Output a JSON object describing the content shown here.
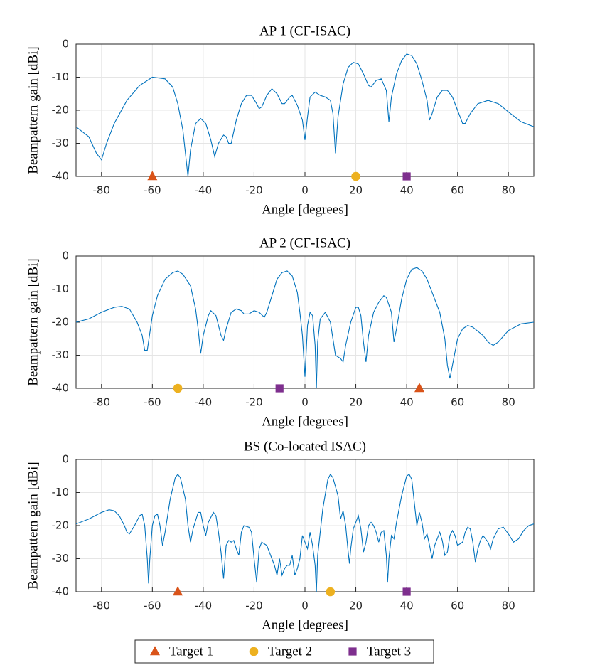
{
  "chart_data": [
    {
      "type": "line",
      "title": "AP 1 (CF-ISAC)",
      "xlabel": "Angle [degrees]",
      "ylabel": "Beampattern gain [dBi]",
      "xlim": [
        -90,
        90
      ],
      "ylim": [
        -40,
        0
      ],
      "xticks": [
        -80,
        -60,
        -40,
        -20,
        0,
        20,
        40,
        60,
        80
      ],
      "yticks": [
        -40,
        -30,
        -20,
        -10,
        0
      ],
      "grid": true,
      "series": [
        {
          "color": "#0072BD",
          "x": [
            -90,
            -85,
            -82,
            -80,
            -78,
            -75,
            -70,
            -65,
            -60,
            -55,
            -52,
            -50,
            -48,
            -46,
            -45,
            -43,
            -41,
            -39,
            -37,
            -35.5,
            -34,
            -32,
            -31,
            -30,
            -29,
            -27,
            -25,
            -23,
            -21,
            -19,
            -18,
            -17,
            -15,
            -13,
            -11,
            -9,
            -8,
            -6,
            -5,
            -3,
            -1,
            0,
            1,
            2,
            4,
            6,
            8,
            10,
            11,
            12,
            13,
            15,
            17,
            19,
            21,
            23,
            25,
            26,
            28,
            30,
            32,
            33,
            34,
            36,
            38,
            40,
            42,
            44,
            46,
            48,
            49,
            50,
            52,
            54,
            56,
            58,
            60,
            62,
            63,
            65,
            68,
            72,
            76,
            80,
            85,
            90
          ],
          "values": [
            -25,
            -28,
            -33,
            -35,
            -30,
            -24,
            -17,
            -12.5,
            -10,
            -10.5,
            -13,
            -18,
            -26,
            -40,
            -32,
            -24,
            -22.5,
            -24,
            -29,
            -34,
            -30,
            -27.5,
            -28,
            -30,
            -30,
            -23,
            -18,
            -15.5,
            -15.5,
            -18,
            -19.5,
            -19,
            -15.5,
            -13.5,
            -15,
            -18,
            -18,
            -16,
            -15.5,
            -18.5,
            -23,
            -29,
            -22,
            -16,
            -14.5,
            -15.5,
            -16,
            -17,
            -21,
            -33,
            -22,
            -12,
            -7,
            -5.5,
            -6,
            -9,
            -12.5,
            -13,
            -11,
            -10.5,
            -14,
            -23.5,
            -16,
            -9,
            -5,
            -3,
            -3.5,
            -6,
            -11,
            -17,
            -23,
            -21,
            -16,
            -14,
            -14,
            -16,
            -20,
            -24,
            -24,
            -21,
            -18,
            -17,
            -18,
            -20.5,
            -23.5,
            -25
          ]
        },
        {
          "name": "Target 1",
          "color": "#D95319",
          "marker": "triangle",
          "x": [
            -60
          ],
          "values": [
            -40
          ]
        },
        {
          "name": "Target 2",
          "color": "#EDB120",
          "marker": "circle",
          "x": [
            20
          ],
          "values": [
            -40
          ]
        },
        {
          "name": "Target 3",
          "color": "#7E2F8E",
          "marker": "square",
          "x": [
            40
          ],
          "values": [
            -40
          ]
        }
      ]
    },
    {
      "type": "line",
      "title": "AP 2 (CF-ISAC)",
      "xlabel": "Angle [degrees]",
      "ylabel": "Beampattern gain [dBi]",
      "xlim": [
        -90,
        90
      ],
      "ylim": [
        -40,
        0
      ],
      "xticks": [
        -80,
        -60,
        -40,
        -20,
        0,
        20,
        40,
        60,
        80
      ],
      "yticks": [
        -40,
        -30,
        -20,
        -10,
        0
      ],
      "grid": true,
      "series": [
        {
          "color": "#0072BD",
          "x": [
            -90,
            -85,
            -80,
            -75,
            -72,
            -69,
            -66,
            -64,
            -63,
            -62,
            -60,
            -58,
            -55,
            -52,
            -50,
            -48,
            -45,
            -43,
            -42,
            -41,
            -40,
            -38,
            -37,
            -35,
            -33,
            -32,
            -31,
            -29,
            -27,
            -25,
            -24,
            -22,
            -20,
            -18,
            -16,
            -15,
            -13,
            -11,
            -9,
            -7,
            -5,
            -3,
            -2,
            -1,
            0,
            1,
            2,
            3,
            4,
            4.5,
            5,
            6,
            8,
            10,
            11,
            12,
            14,
            15,
            16,
            18,
            20,
            21,
            22,
            23,
            24,
            25,
            27,
            29,
            31,
            32,
            34,
            35,
            36,
            38,
            40,
            42,
            44,
            46,
            48,
            50,
            53,
            55,
            56,
            57,
            58,
            60,
            62,
            64,
            66,
            70,
            72,
            74,
            76,
            80,
            85,
            90
          ],
          "values": [
            -20,
            -19,
            -17,
            -15.5,
            -15.2,
            -16,
            -20,
            -24,
            -28.5,
            -28.5,
            -18,
            -12,
            -7,
            -5,
            -4.5,
            -5.5,
            -9,
            -16,
            -22,
            -29.5,
            -24,
            -18,
            -16.5,
            -18,
            -24,
            -25.5,
            -22,
            -17,
            -16,
            -16.5,
            -17.5,
            -17.5,
            -16.5,
            -17,
            -18.5,
            -17,
            -12,
            -7,
            -5,
            -4.5,
            -6,
            -11,
            -17,
            -24,
            -36.5,
            -21,
            -17,
            -18,
            -27,
            -40,
            -26,
            -19,
            -17,
            -20,
            -25,
            -30,
            -31,
            -32,
            -27,
            -20,
            -15.5,
            -15.5,
            -18,
            -26,
            -32,
            -24,
            -17,
            -14,
            -12,
            -12.5,
            -17,
            -26,
            -22,
            -13,
            -7,
            -4,
            -3.5,
            -4.5,
            -7,
            -11,
            -17,
            -25,
            -33,
            -37,
            -33,
            -25,
            -22,
            -21,
            -21.5,
            -24,
            -26,
            -27,
            -26,
            -22.5,
            -20.5,
            -20
          ]
        },
        {
          "name": "Target 1",
          "color": "#D95319",
          "marker": "triangle",
          "x": [
            45
          ],
          "values": [
            -40
          ]
        },
        {
          "name": "Target 2",
          "color": "#EDB120",
          "marker": "circle",
          "x": [
            -50
          ],
          "values": [
            -40
          ]
        },
        {
          "name": "Target 3",
          "color": "#7E2F8E",
          "marker": "square",
          "x": [
            -10
          ],
          "values": [
            -40
          ]
        }
      ]
    },
    {
      "type": "line",
      "title": "BS (Co-located ISAC)",
      "xlabel": "Angle [degrees]",
      "ylabel": "Beampattern gain [dBi]",
      "xlim": [
        -90,
        90
      ],
      "ylim": [
        -40,
        0
      ],
      "xticks": [
        -80,
        -60,
        -40,
        -20,
        0,
        20,
        40,
        60,
        80
      ],
      "yticks": [
        -40,
        -30,
        -20,
        -10,
        0
      ],
      "grid": true,
      "series": [
        {
          "color": "#0072BD",
          "x": [
            -90,
            -85,
            -80,
            -77,
            -75,
            -73,
            -71,
            -70,
            -69,
            -67,
            -65,
            -64,
            -63,
            -62,
            -61.5,
            -61,
            -60,
            -59,
            -58,
            -57,
            -56,
            -55,
            -53,
            -51,
            -50,
            -49,
            -47,
            -46,
            -45,
            -44,
            -42,
            -41,
            -40,
            -39,
            -38,
            -36,
            -35,
            -34,
            -33,
            -32,
            -31,
            -30,
            -29,
            -28,
            -27,
            -26,
            -25,
            -24,
            -22,
            -21,
            -20,
            -19,
            -18,
            -17,
            -15,
            -14,
            -13,
            -12,
            -11,
            -10,
            -9,
            -8,
            -7,
            -6,
            -5,
            -4,
            -3,
            -2,
            -1,
            0,
            1,
            2,
            3,
            4,
            4.5,
            5,
            6,
            7,
            9,
            10,
            11,
            13,
            14,
            15,
            16,
            17,
            17.5,
            18,
            19,
            20,
            21,
            22,
            23,
            24,
            25,
            26,
            27,
            28,
            29,
            30,
            31,
            32,
            32.5,
            33,
            34,
            35,
            36,
            38,
            40,
            41,
            42,
            43,
            44,
            45,
            46,
            47,
            48,
            49,
            50,
            51,
            52,
            53,
            54,
            55,
            56,
            57,
            58,
            59,
            60,
            62,
            63,
            64,
            65,
            66,
            67,
            68,
            69,
            70,
            72,
            73,
            74,
            76,
            78,
            80,
            82,
            84,
            86,
            88,
            90
          ],
          "values": [
            -19.5,
            -18,
            -16,
            -15.2,
            -15.5,
            -17,
            -20,
            -22,
            -22.5,
            -20,
            -17,
            -16.5,
            -20,
            -30,
            -37.5,
            -30,
            -20,
            -17,
            -16.5,
            -20,
            -26,
            -22,
            -12,
            -5.5,
            -4.5,
            -5.5,
            -12,
            -20,
            -25,
            -21,
            -16,
            -16,
            -20,
            -23,
            -19,
            -16,
            -17,
            -22,
            -28,
            -36,
            -26,
            -24.5,
            -25,
            -24.5,
            -27,
            -29,
            -22,
            -20,
            -20.5,
            -22,
            -30,
            -37,
            -27,
            -25,
            -26,
            -28,
            -30,
            -32,
            -35,
            -30,
            -35,
            -33,
            -32,
            -32,
            -29,
            -35,
            -33,
            -30,
            -23,
            -25,
            -27,
            -22,
            -26,
            -32,
            -40,
            -29,
            -22,
            -15,
            -6,
            -4.5,
            -5.5,
            -11,
            -18,
            -15.5,
            -20,
            -28,
            -31.5,
            -27,
            -21,
            -19,
            -17,
            -21,
            -28,
            -25,
            -20,
            -19,
            -20,
            -22,
            -25,
            -22,
            -21.5,
            -29,
            -37,
            -30,
            -23,
            -24,
            -19,
            -11,
            -5,
            -4.5,
            -6,
            -13,
            -20,
            -16,
            -19,
            -24,
            -22.5,
            -26,
            -30,
            -26,
            -24,
            -22,
            -24.5,
            -29,
            -28,
            -23,
            -21.5,
            -23,
            -26,
            -25,
            -22,
            -20.5,
            -21,
            -25,
            -31,
            -27,
            -24.5,
            -23,
            -25,
            -27,
            -24,
            -21,
            -20.5,
            -22.5,
            -25,
            -24,
            -21.5,
            -20,
            -19.5
          ]
        },
        {
          "name": "Target 1",
          "color": "#D95319",
          "marker": "triangle",
          "x": [
            -50
          ],
          "values": [
            -40
          ]
        },
        {
          "name": "Target 2",
          "color": "#EDB120",
          "marker": "circle",
          "x": [
            10
          ],
          "values": [
            -40
          ]
        },
        {
          "name": "Target 3",
          "color": "#7E2F8E",
          "marker": "square",
          "x": [
            40
          ],
          "values": [
            -40
          ]
        }
      ]
    }
  ]
}
